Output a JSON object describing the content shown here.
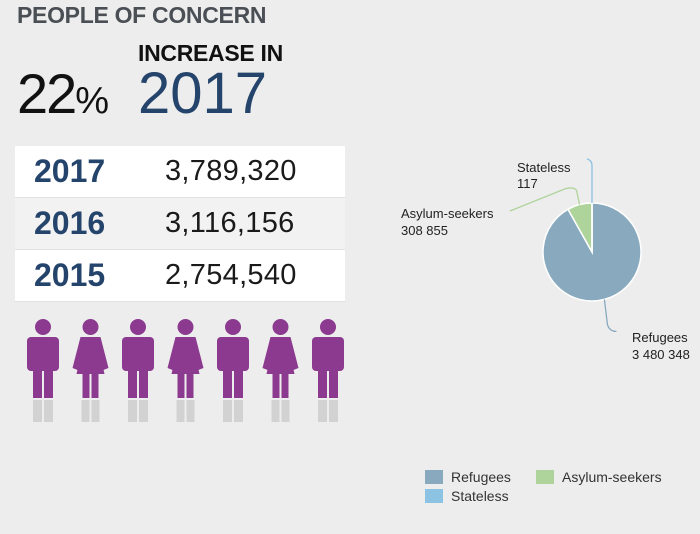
{
  "header": {
    "title": "PEOPLE OF CONCERN",
    "percent_value": "22",
    "percent_symbol": "%",
    "increase_label": "INCREASE IN",
    "increase_year": "2017"
  },
  "table": {
    "rows": [
      {
        "year": "2017",
        "value": "3,789,320"
      },
      {
        "year": "2016",
        "value": "3,116,156"
      },
      {
        "year": "2015",
        "value": "2,754,540"
      }
    ]
  },
  "people_icons": [
    "male",
    "female",
    "male",
    "female",
    "male",
    "female",
    "male"
  ],
  "colors": {
    "people": "#8b3a8f",
    "refugees": "#88a9be",
    "asylum": "#aed49b",
    "stateless": "#8cc2e2",
    "year_blue": "#25446b"
  },
  "chart_data": {
    "type": "pie",
    "title": "",
    "slices": [
      {
        "name": "Refugees",
        "value": 3480348,
        "label": "3 480 348",
        "color": "#88a9be"
      },
      {
        "name": "Asylum-seekers",
        "value": 308855,
        "label": "308 855",
        "color": "#aed49b"
      },
      {
        "name": "Stateless",
        "value": 117,
        "label": "117",
        "color": "#8cc2e2"
      }
    ],
    "legend": {
      "position": "bottom-right",
      "entries": [
        "Refugees",
        "Asylum-seekers",
        "Stateless"
      ]
    }
  }
}
